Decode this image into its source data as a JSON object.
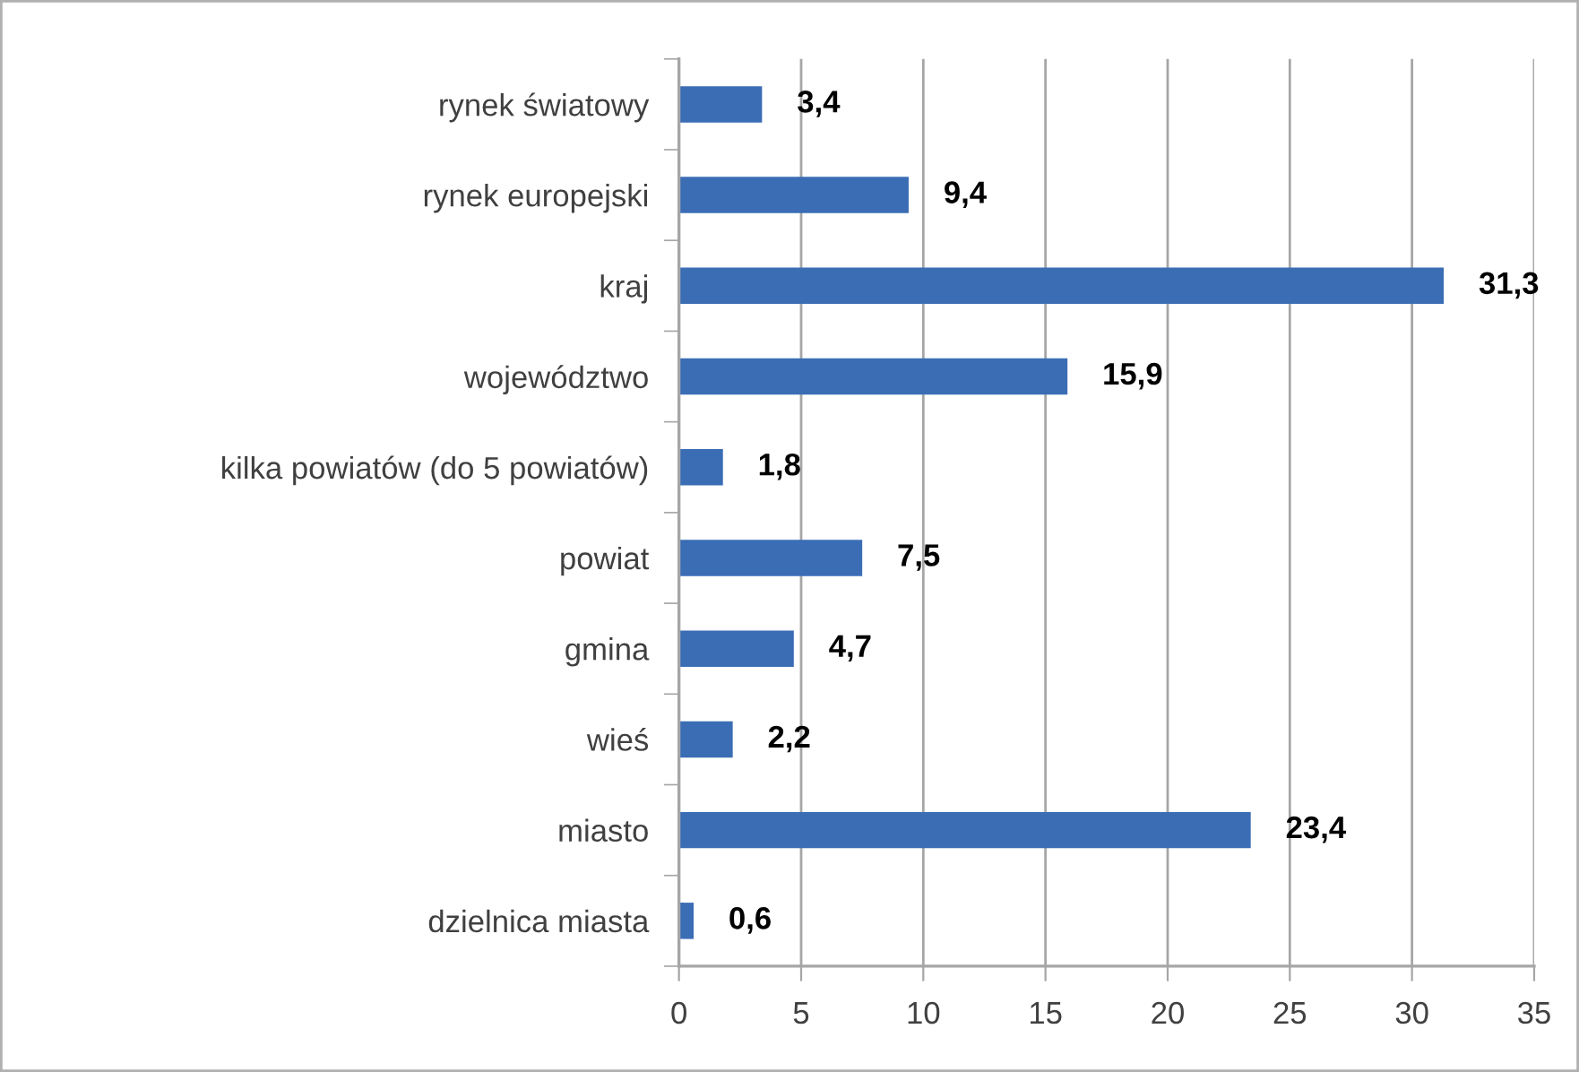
{
  "chart_data": {
    "type": "bar",
    "orientation": "horizontal",
    "categories": [
      "rynek światowy",
      "rynek europejski",
      "kraj",
      "województwo",
      "kilka powiatów (do 5 powiatów)",
      "powiat",
      "gmina",
      "wieś",
      "miasto",
      "dzielnica miasta"
    ],
    "values": [
      3.4,
      9.4,
      31.3,
      15.9,
      1.8,
      7.5,
      4.7,
      2.2,
      23.4,
      0.6
    ],
    "value_labels": [
      "3,4",
      "9,4",
      "31,3",
      "15,9",
      "1,8",
      "7,5",
      "4,7",
      "2,2",
      "23,4",
      "0,6"
    ],
    "color": "#3b6db5",
    "xlim": [
      0,
      35
    ],
    "xticks": [
      0,
      5,
      10,
      15,
      20,
      25,
      30,
      35
    ],
    "grid": "x"
  }
}
